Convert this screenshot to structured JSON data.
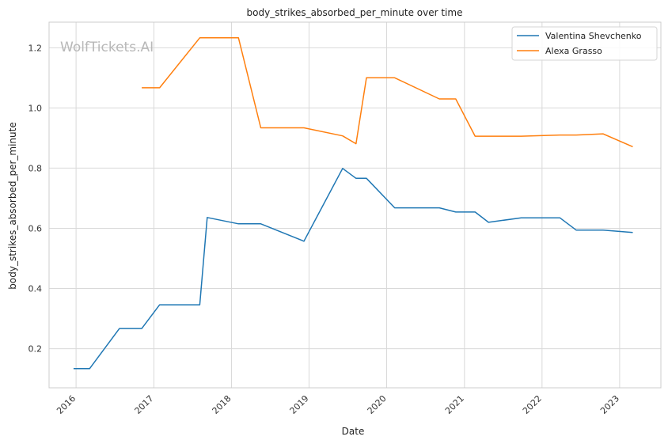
{
  "chart_data": {
    "type": "line",
    "title": "body_strikes_absorbed_per_minute over time",
    "xlabel": "Date",
    "ylabel": "body_strikes_absorbed_per_minute",
    "watermark": "WolfTickets.AI",
    "x_ticks": [
      "2016",
      "2017",
      "2018",
      "2019",
      "2020",
      "2021",
      "2022",
      "2023"
    ],
    "y_ticks": [
      "0.2",
      "0.4",
      "0.6",
      "0.8",
      "1.0",
      "1.2"
    ],
    "xlim": [
      "2015-08-27",
      "2023-07-14"
    ],
    "ylim": [
      0.07,
      1.285
    ],
    "grid": true,
    "legend_position": "top-right",
    "series": [
      {
        "name": "Valentina Shevchenko",
        "color": "#1f77b4",
        "points": [
          [
            "2015-12-20",
            0.134
          ],
          [
            "2016-03-05",
            0.134
          ],
          [
            "2016-07-23",
            0.267
          ],
          [
            "2016-11-05",
            0.267
          ],
          [
            "2017-01-28",
            0.346
          ],
          [
            "2017-08-05",
            0.346
          ],
          [
            "2017-09-09",
            0.636
          ],
          [
            "2018-02-03",
            0.615
          ],
          [
            "2018-05-19",
            0.615
          ],
          [
            "2018-12-08",
            0.557
          ],
          [
            "2019-06-08",
            0.799
          ],
          [
            "2019-08-10",
            0.766
          ],
          [
            "2019-09-28",
            0.766
          ],
          [
            "2020-02-08",
            0.668
          ],
          [
            "2020-09-05",
            0.668
          ],
          [
            "2020-11-21",
            0.654
          ],
          [
            "2021-02-20",
            0.654
          ],
          [
            "2021-04-24",
            0.62
          ],
          [
            "2021-09-25",
            0.635
          ],
          [
            "2022-03-26",
            0.635
          ],
          [
            "2022-06-11",
            0.594
          ],
          [
            "2022-10-15",
            0.594
          ],
          [
            "2023-03-04",
            0.586
          ]
        ]
      },
      {
        "name": "Alexa Grasso",
        "color": "#ff7f0e",
        "points": [
          [
            "2016-11-05",
            1.067
          ],
          [
            "2017-01-28",
            1.067
          ],
          [
            "2017-08-05",
            1.233
          ],
          [
            "2018-02-03",
            1.233
          ],
          [
            "2018-05-19",
            0.934
          ],
          [
            "2018-12-08",
            0.934
          ],
          [
            "2019-06-08",
            0.907
          ],
          [
            "2019-08-10",
            0.881
          ],
          [
            "2019-09-28",
            1.1
          ],
          [
            "2020-02-08",
            1.1
          ],
          [
            "2020-09-05",
            1.03
          ],
          [
            "2020-11-21",
            1.03
          ],
          [
            "2021-02-20",
            0.906
          ],
          [
            "2021-09-25",
            0.906
          ],
          [
            "2022-03-26",
            0.91
          ],
          [
            "2022-06-11",
            0.91
          ],
          [
            "2022-10-15",
            0.914
          ],
          [
            "2023-03-04",
            0.871
          ]
        ]
      }
    ]
  }
}
